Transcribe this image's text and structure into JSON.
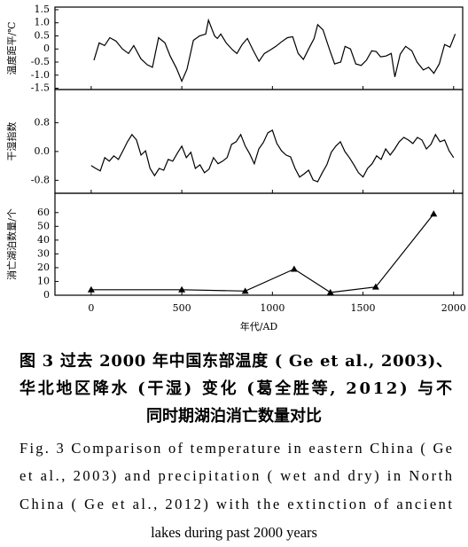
{
  "chart_data": [
    {
      "type": "line",
      "ylabel": "温度距平/℃",
      "xlim": [
        -200,
        2050
      ],
      "ylim": [
        -1.55,
        1.6
      ],
      "yticks": [
        1.5,
        {
          "value": 1,
          "label": "1.0"
        },
        0.5,
        0,
        -0.5,
        {
          "value": -1,
          "label": "-1.0"
        },
        -1.5
      ],
      "series": [
        {
          "color": "#000000",
          "x": [
            15,
            44,
            74,
            103,
            137,
            172,
            206,
            235,
            274,
            309,
            338,
            372,
            407,
            436,
            470,
            500,
            529,
            564,
            598,
            632,
            647,
            681,
            696,
            715,
            745,
            779,
            804,
            833,
            862,
            892,
            926,
            956,
            990,
            1019,
            1049,
            1083,
            1112,
            1142,
            1171,
            1200,
            1230,
            1250,
            1279,
            1313,
            1343,
            1377,
            1401,
            1431,
            1460,
            1490,
            1519,
            1548,
            1573,
            1597,
            1627,
            1656,
            1676,
            1705,
            1735,
            1769,
            1798,
            1833,
            1862,
            1891,
            1921,
            1950,
            1980,
            2009
          ],
          "values": [
            -0.43,
            0.23,
            0.13,
            0.43,
            0.3,
            0,
            -0.17,
            0.13,
            -0.37,
            -0.6,
            -0.7,
            0.43,
            0.23,
            -0.27,
            -0.73,
            -1.23,
            -0.77,
            0.33,
            0.5,
            0.57,
            1.1,
            0.5,
            0.4,
            0.57,
            0.23,
            -0.03,
            -0.17,
            0.17,
            0.4,
            -0.03,
            -0.47,
            -0.17,
            -0.03,
            0.1,
            0.27,
            0.43,
            0.47,
            -0.17,
            -0.4,
            0,
            0.4,
            0.93,
            0.73,
            0.03,
            -0.57,
            -0.5,
            0.1,
            0,
            -0.57,
            -0.63,
            -0.43,
            -0.07,
            -0.1,
            -0.3,
            -0.27,
            -0.17,
            -1.07,
            -0.2,
            0.1,
            -0.07,
            -0.5,
            -0.8,
            -0.7,
            -0.93,
            -0.57,
            0.17,
            0.07,
            0.57
          ]
        }
      ]
    },
    {
      "type": "line",
      "ylabel": "干湿指数",
      "xlim": [
        -200,
        2050
      ],
      "ylim": [
        -1.16,
        1.72
      ],
      "yticks": [
        0.8,
        {
          "value": 0,
          "label": "0.0"
        },
        -0.8
      ],
      "series": [
        {
          "color": "#000000",
          "x": [
            0,
            25,
            50,
            75,
            100,
            125,
            150,
            175,
            200,
            225,
            250,
            275,
            300,
            325,
            350,
            375,
            400,
            425,
            450,
            475,
            500,
            525,
            550,
            575,
            600,
            625,
            650,
            675,
            700,
            725,
            750,
            775,
            800,
            825,
            850,
            875,
            900,
            925,
            950,
            975,
            1000,
            1025,
            1050,
            1075,
            1100,
            1125,
            1150,
            1175,
            1200,
            1225,
            1250,
            1275,
            1300,
            1325,
            1350,
            1375,
            1400,
            1425,
            1450,
            1475,
            1500,
            1525,
            1550,
            1575,
            1600,
            1625,
            1650,
            1675,
            1700,
            1725,
            1750,
            1775,
            1800,
            1825,
            1850,
            1875,
            1900,
            1925,
            1950,
            1975,
            2000
          ],
          "values": [
            -0.39,
            -0.47,
            -0.54,
            -0.17,
            -0.27,
            -0.12,
            -0.22,
            0.02,
            0.27,
            0.47,
            0.32,
            -0.1,
            0.02,
            -0.47,
            -0.67,
            -0.47,
            -0.52,
            -0.22,
            -0.27,
            -0.05,
            0.15,
            -0.17,
            -0.02,
            -0.47,
            -0.37,
            -0.59,
            -0.49,
            -0.17,
            -0.34,
            -0.27,
            -0.17,
            0.2,
            0.27,
            0.47,
            0.15,
            -0.07,
            -0.34,
            0.07,
            0.25,
            0.52,
            0.59,
            0.22,
            0.02,
            -0.1,
            -0.15,
            -0.47,
            -0.71,
            -0.62,
            -0.52,
            -0.79,
            -0.84,
            -0.59,
            -0.37,
            -0.02,
            0.15,
            0.27,
            0,
            -0.17,
            -0.37,
            -0.59,
            -0.71,
            -0.47,
            -0.34,
            -0.12,
            -0.22,
            0.07,
            -0.1,
            0.07,
            0.27,
            0.39,
            0.32,
            0.22,
            0.39,
            0.32,
            0.07,
            0.2,
            0.47,
            0.27,
            0.32,
            0.02,
            -0.17
          ]
        }
      ]
    },
    {
      "type": "line",
      "ylabel": "消亡湖泊数量/个",
      "xlabel": "年代/AD",
      "xlim": [
        -200,
        2050
      ],
      "ylim": [
        0,
        74
      ],
      "xticks": [
        0,
        500,
        1000,
        1500,
        2000
      ],
      "yticks": [
        0,
        10,
        20,
        30,
        40,
        50,
        60
      ],
      "marker": "triangle",
      "series": [
        {
          "color": "#000000",
          "x": [
            0,
            500,
            850,
            1120,
            1320,
            1570,
            1890
          ],
          "values": [
            4,
            4,
            3,
            19,
            2,
            6,
            59
          ]
        }
      ]
    }
  ],
  "caption": {
    "zh": [
      "图 3   过去 2000 年中国东部温度 ( Ge et al., 2003)、",
      "华北地区降水 (干湿) 变化 (葛全胜等, 2012) 与不",
      "同时期湖泊消亡数量对比"
    ],
    "en": [
      "Fig. 3   Comparison of temperature in eastern China ( Ge",
      "et al., 2003)  and precipitation ( wet and dry)  in North",
      "China ( Ge et al., 2012)  with the extinction of ancient",
      "lakes during past 2000 years"
    ]
  }
}
